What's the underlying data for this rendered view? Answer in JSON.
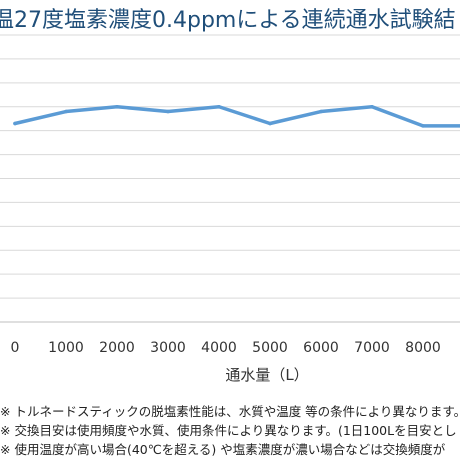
{
  "chart_data": {
    "type": "line",
    "title": "温27度塩素濃度0.4ppmによる連続通水試験結",
    "xlabel": "通水量（L）",
    "ylabel": "",
    "categories": [
      "0",
      "1000",
      "2000",
      "3000",
      "4000",
      "5000",
      "6000",
      "7000",
      "8000",
      "9"
    ],
    "series": [
      {
        "values": [
          83,
          88,
          90,
          88,
          90,
          83,
          88,
          90,
          82,
          82
        ]
      }
    ],
    "ylim": [
      0,
      120
    ],
    "grid": true,
    "legend": "none",
    "colors": {
      "line": "#5b9bd5",
      "grid": "#d9d9d9",
      "title": "#1f4e79"
    }
  },
  "notes": [
    "※ トルネードスティックの脱塩素性能は、水質や温度 等の条件により異なります。",
    "※ 交換目安は使用頻度や水質、使用条件により異なります。(1日100Lを目安とし",
    "※ 使用温度が高い場合(40℃を超える) や塩素濃度が濃い場合などは交換頻度が"
  ]
}
